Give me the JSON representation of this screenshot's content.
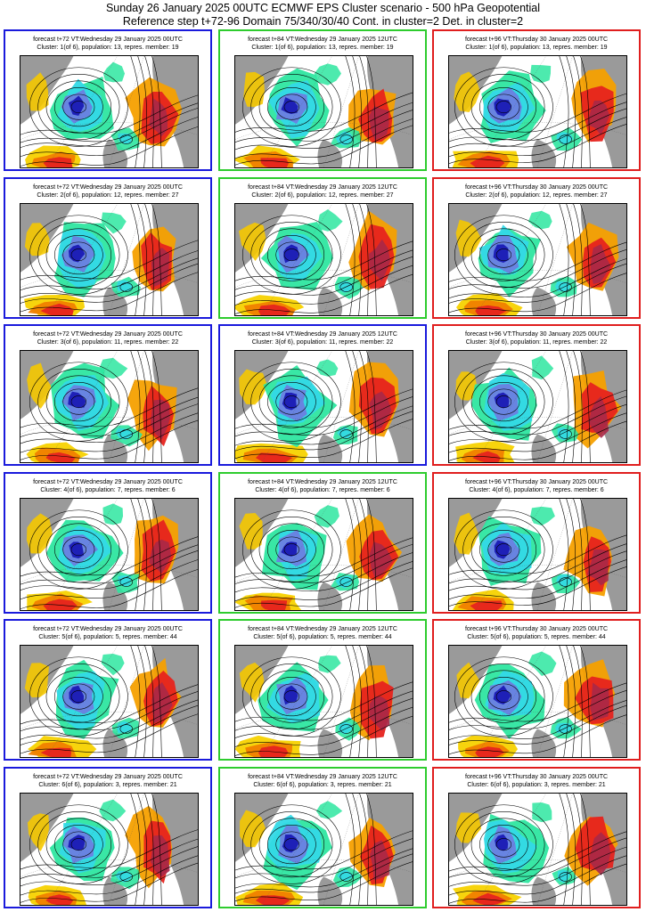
{
  "header": {
    "line1": "Sunday 26 January 2025 00UTC ECMWF EPS Cluster scenario - 500 hPa Geopotential",
    "line2": "Reference step t+72-96 Domain 75/340/30/40 Cont. in cluster=2 Det. in cluster=2"
  },
  "colors": {
    "blue_frame": "#1a1adc",
    "green_frame": "#2ecc2e",
    "red_frame": "#e01e1e",
    "land": "#9a9a9a",
    "sea": "#ffffff"
  },
  "columns": [
    {
      "step": "t+72",
      "label": "forecast t+72 VT:Wednesday 29 January 2025 00UTC"
    },
    {
      "step": "t+84",
      "label": "forecast t+84 VT:Wednesday 29 January 2025 12UTC"
    },
    {
      "step": "t+96",
      "label": "forecast t+96 VT:Thursday 30 January 2025 00UTC"
    }
  ],
  "clusters": [
    {
      "label": "Cluster: 1(of 6), population: 13, repres. member: 19",
      "frames": [
        "blue",
        "green",
        "red"
      ]
    },
    {
      "label": "Cluster: 2(of 6), population: 12, repres. member: 27",
      "frames": [
        "blue",
        "green",
        "red"
      ]
    },
    {
      "label": "Cluster: 3(of 6), population: 11, repres. member: 22",
      "frames": [
        "blue",
        "blue",
        "red"
      ]
    },
    {
      "label": "Cluster: 4(of 6), population: 7, repres. member: 6",
      "frames": [
        "blue",
        "green",
        "red"
      ]
    },
    {
      "label": "Cluster: 5(of 6), population: 5, repres. member: 44",
      "frames": [
        "blue",
        "green",
        "red"
      ]
    },
    {
      "label": "Cluster: 6(of 6), population: 3, repres. member: 21",
      "frames": [
        "blue",
        "green",
        "red"
      ]
    }
  ]
}
